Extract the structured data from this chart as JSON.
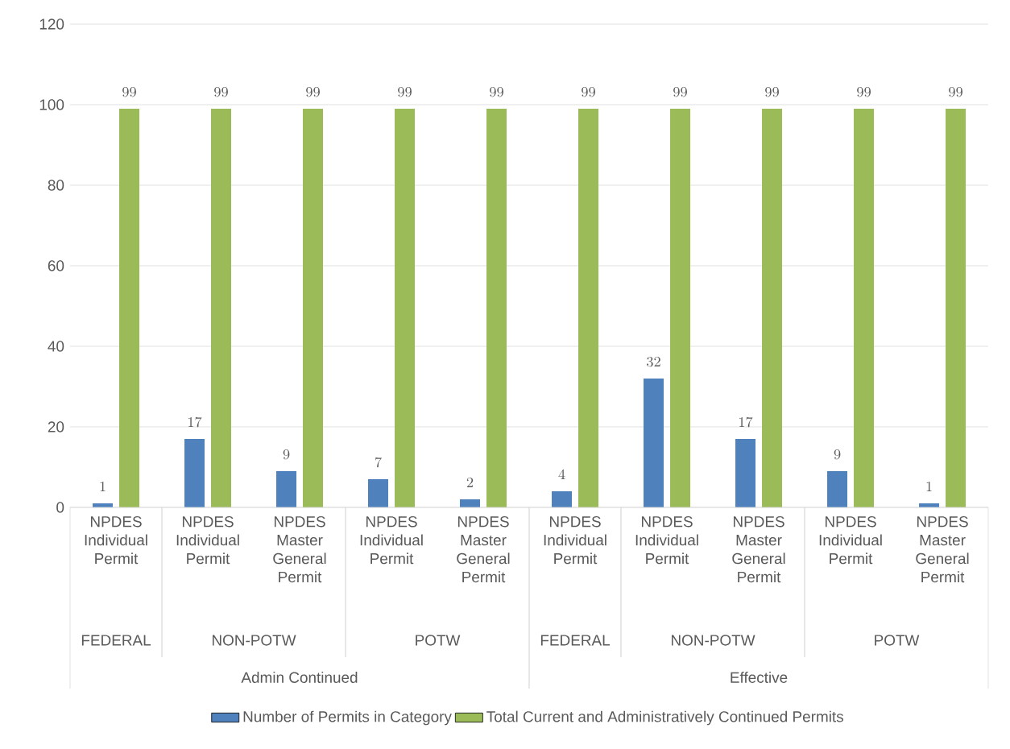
{
  "chart_data": {
    "type": "bar",
    "categories": [
      "NPDES Individual Permit",
      "NPDES Individual Permit",
      "NPDES Master General Permit",
      "NPDES Individual Permit",
      "NPDES Master General Permit",
      "NPDES Individual Permit",
      "NPDES Individual Permit",
      "NPDES Master General Permit",
      "NPDES Individual Permit",
      "NPDES Master General Permit"
    ],
    "series": [
      {
        "name": "Number of Permits in Category",
        "color": "#4f81bd",
        "values": [
          1,
          17,
          9,
          7,
          2,
          4,
          32,
          17,
          9,
          1
        ]
      },
      {
        "name": "Total Current and Administratively Continued Permits",
        "color": "#9bbb59",
        "values": [
          99,
          99,
          99,
          99,
          99,
          99,
          99,
          99,
          99,
          99
        ]
      }
    ],
    "annotations": [
      "FEDERAL",
      "NON-POTW",
      "POTW",
      "FEDERAL",
      "NON-POTW",
      "POTW",
      "Admin Continued",
      "Effective"
    ],
    "ylim": [
      0,
      120
    ],
    "yticks": [
      0,
      20,
      40,
      60,
      80,
      100,
      120
    ],
    "grid": "y",
    "legend": "bottom",
    "data_labels": true
  }
}
